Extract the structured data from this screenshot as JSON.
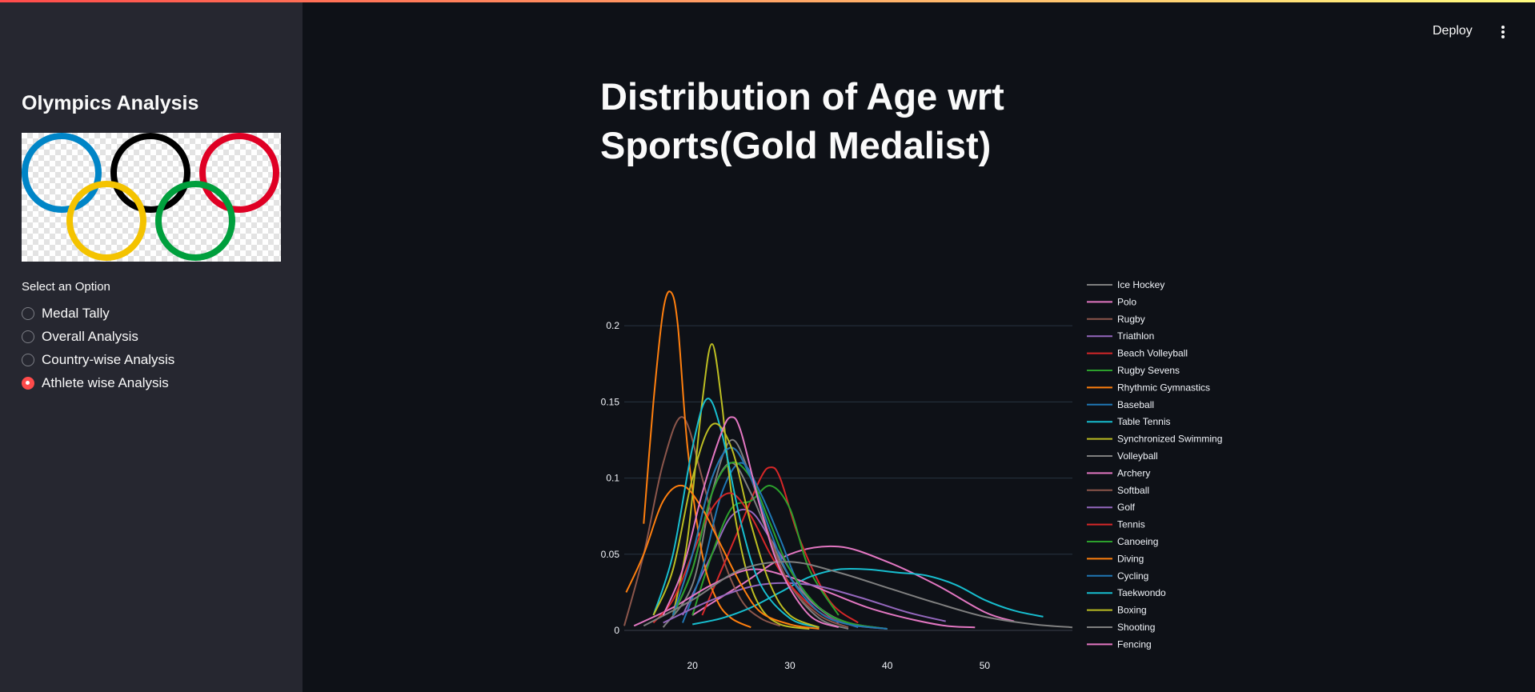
{
  "toolbar": {
    "deploy_label": "Deploy"
  },
  "sidebar": {
    "title": "Olympics Analysis",
    "select_label": "Select an Option",
    "options": [
      {
        "label": "Medal Tally",
        "selected": false
      },
      {
        "label": "Overall Analysis",
        "selected": false
      },
      {
        "label": "Country-wise Analysis",
        "selected": false
      },
      {
        "label": "Athlete wise Analysis",
        "selected": true
      }
    ],
    "accent_color": "#ff4b4b",
    "logo_colors": [
      "#0085c7",
      "#000000",
      "#df0024",
      "#f4c300",
      "#009f3d"
    ]
  },
  "main": {
    "title": "Distribution of Age wrt Sports(Gold Medalist)"
  },
  "chart_data": {
    "type": "line",
    "title": "",
    "xlabel": "",
    "ylabel": "",
    "xlim": [
      13,
      59
    ],
    "ylim": [
      0,
      0.23
    ],
    "x_ticks": [
      20,
      30,
      40,
      50
    ],
    "y_ticks": [
      0,
      0.05,
      0.1,
      0.15,
      0.2
    ],
    "y_tick_labels": [
      "0",
      "0.05",
      "0.1",
      "0.15",
      "0.2"
    ],
    "grid": true,
    "legend_position": "right",
    "series": [
      {
        "name": "Ice Hockey",
        "color": "#7f7f7f",
        "x": [
          17,
          20,
          22,
          24,
          26,
          28,
          30,
          33,
          36
        ],
        "y": [
          0.002,
          0.03,
          0.09,
          0.125,
          0.1,
          0.06,
          0.03,
          0.008,
          0.001
        ]
      },
      {
        "name": "Polo",
        "color": "#e377c2",
        "x": [
          20,
          25,
          30,
          35,
          40,
          45,
          50,
          53
        ],
        "y": [
          0.01,
          0.03,
          0.05,
          0.055,
          0.045,
          0.03,
          0.012,
          0.006
        ]
      },
      {
        "name": "Rugby",
        "color": "#8c564b",
        "x": [
          13,
          15,
          17,
          19,
          21,
          23,
          25,
          27,
          29
        ],
        "y": [
          0.003,
          0.05,
          0.11,
          0.14,
          0.1,
          0.05,
          0.02,
          0.008,
          0.003
        ]
      },
      {
        "name": "Triathlon",
        "color": "#9467bd",
        "x": [
          19,
          22,
          24,
          26,
          28,
          30,
          32,
          35
        ],
        "y": [
          0.01,
          0.05,
          0.075,
          0.078,
          0.06,
          0.04,
          0.02,
          0.005
        ]
      },
      {
        "name": "Beach Volleyball",
        "color": "#d62728",
        "x": [
          21,
          23,
          25,
          27,
          28,
          29,
          31,
          34,
          37
        ],
        "y": [
          0.01,
          0.04,
          0.07,
          0.1,
          0.107,
          0.1,
          0.06,
          0.02,
          0.005
        ]
      },
      {
        "name": "Rugby Sevens",
        "color": "#2ca02c",
        "x": [
          20,
          22,
          24,
          26,
          28,
          30,
          32,
          35
        ],
        "y": [
          0.01,
          0.05,
          0.08,
          0.085,
          0.095,
          0.08,
          0.04,
          0.01
        ]
      },
      {
        "name": "Rhythmic Gymnastics",
        "color": "#ff7f0e",
        "x": [
          15,
          16,
          17,
          17.8,
          18.5,
          19.5,
          21,
          22.5,
          24,
          26
        ],
        "y": [
          0.07,
          0.15,
          0.21,
          0.222,
          0.2,
          0.12,
          0.05,
          0.02,
          0.008,
          0.002
        ]
      },
      {
        "name": "Baseball",
        "color": "#1f77b4",
        "x": [
          19,
          21,
          23,
          25,
          27,
          29,
          31,
          34,
          37
        ],
        "y": [
          0.005,
          0.04,
          0.09,
          0.11,
          0.09,
          0.06,
          0.03,
          0.01,
          0.002
        ]
      },
      {
        "name": "Table Tennis",
        "color": "#17becf",
        "x": [
          20,
          23,
          26,
          29,
          32,
          35,
          38,
          41,
          44,
          47,
          50,
          53,
          56
        ],
        "y": [
          0.004,
          0.008,
          0.015,
          0.025,
          0.035,
          0.04,
          0.04,
          0.038,
          0.036,
          0.03,
          0.02,
          0.013,
          0.009
        ]
      },
      {
        "name": "Synchronized Swimming",
        "color": "#bcbd22",
        "x": [
          18,
          19.5,
          21,
          22,
          23,
          24,
          25.5,
          27,
          29,
          32
        ],
        "y": [
          0.01,
          0.06,
          0.15,
          0.188,
          0.15,
          0.09,
          0.04,
          0.015,
          0.004,
          0.001
        ]
      },
      {
        "name": "Volleyball",
        "color": "#7f7f7f",
        "x": [
          18,
          20,
          22,
          24,
          26,
          28,
          30,
          33,
          36,
          40
        ],
        "y": [
          0.01,
          0.04,
          0.09,
          0.11,
          0.09,
          0.06,
          0.035,
          0.015,
          0.005,
          0.001
        ]
      },
      {
        "name": "Archery",
        "color": "#e377c2",
        "x": [
          14,
          18,
          22,
          26,
          30,
          34,
          38,
          42,
          46,
          49
        ],
        "y": [
          0.003,
          0.015,
          0.03,
          0.04,
          0.035,
          0.025,
          0.015,
          0.008,
          0.003,
          0.002
        ]
      },
      {
        "name": "Softball",
        "color": "#8c564b",
        "x": [
          18,
          20,
          22,
          24,
          26,
          28,
          30,
          33,
          36
        ],
        "y": [
          0.01,
          0.05,
          0.1,
          0.12,
          0.1,
          0.06,
          0.03,
          0.01,
          0.002
        ]
      },
      {
        "name": "Golf",
        "color": "#9467bd",
        "x": [
          17,
          22,
          27,
          32,
          37,
          42,
          46
        ],
        "y": [
          0.005,
          0.02,
          0.03,
          0.03,
          0.022,
          0.012,
          0.006
        ]
      },
      {
        "name": "Tennis",
        "color": "#d62728",
        "x": [
          16,
          18,
          20,
          22,
          24,
          26,
          28,
          30,
          33,
          36,
          40
        ],
        "y": [
          0.005,
          0.02,
          0.05,
          0.08,
          0.09,
          0.075,
          0.05,
          0.03,
          0.012,
          0.004,
          0.001
        ]
      },
      {
        "name": "Canoeing",
        "color": "#2ca02c",
        "x": [
          18,
          20,
          22,
          24,
          26,
          28,
          30,
          33,
          36,
          40
        ],
        "y": [
          0.01,
          0.04,
          0.09,
          0.11,
          0.1,
          0.07,
          0.04,
          0.015,
          0.005,
          0.001
        ]
      },
      {
        "name": "Diving",
        "color": "#ff7f0e",
        "x": [
          13.2,
          15,
          17,
          19,
          21,
          23,
          25,
          27,
          30,
          33
        ],
        "y": [
          0.025,
          0.05,
          0.085,
          0.095,
          0.08,
          0.055,
          0.03,
          0.012,
          0.004,
          0.001
        ]
      },
      {
        "name": "Cycling",
        "color": "#1f77b4",
        "x": [
          18,
          20,
          22,
          24,
          26,
          28,
          30,
          33,
          36,
          40
        ],
        "y": [
          0.01,
          0.05,
          0.1,
          0.12,
          0.1,
          0.065,
          0.035,
          0.012,
          0.004,
          0.001
        ]
      },
      {
        "name": "Taekwondo",
        "color": "#17becf",
        "x": [
          16,
          18,
          20,
          21.5,
          23,
          25,
          27,
          30,
          33
        ],
        "y": [
          0.01,
          0.05,
          0.12,
          0.152,
          0.13,
          0.07,
          0.03,
          0.008,
          0.002
        ]
      },
      {
        "name": "Boxing",
        "color": "#bcbd22",
        "x": [
          16,
          18,
          20,
          22,
          24,
          26,
          28,
          30,
          33
        ],
        "y": [
          0.01,
          0.04,
          0.1,
          0.135,
          0.12,
          0.07,
          0.03,
          0.01,
          0.002
        ]
      },
      {
        "name": "Shooting",
        "color": "#7f7f7f",
        "x": [
          15,
          20,
          25,
          30,
          35,
          40,
          45,
          50,
          55,
          59
        ],
        "y": [
          0.003,
          0.02,
          0.04,
          0.045,
          0.038,
          0.028,
          0.018,
          0.009,
          0.004,
          0.002
        ]
      },
      {
        "name": "Fencing",
        "color": "#e377c2",
        "x": [
          17,
          19,
          21,
          23,
          24,
          25,
          27,
          29,
          32,
          35
        ],
        "y": [
          0.01,
          0.04,
          0.09,
          0.13,
          0.14,
          0.13,
          0.08,
          0.04,
          0.01,
          0.002
        ]
      }
    ]
  }
}
